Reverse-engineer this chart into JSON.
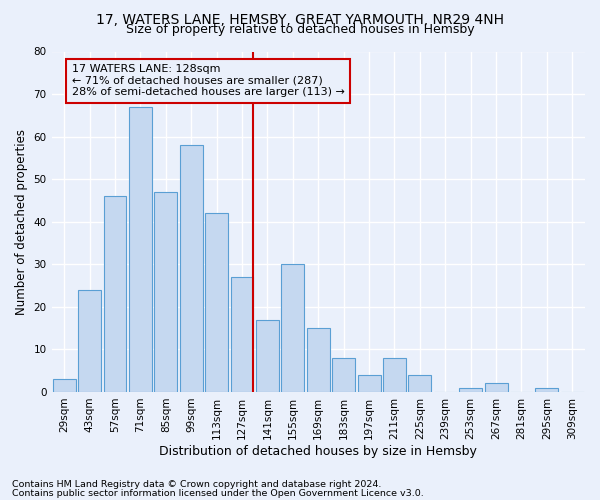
{
  "title1": "17, WATERS LANE, HEMSBY, GREAT YARMOUTH, NR29 4NH",
  "title2": "Size of property relative to detached houses in Hemsby",
  "xlabel": "Distribution of detached houses by size in Hemsby",
  "ylabel": "Number of detached properties",
  "footnote1": "Contains HM Land Registry data © Crown copyright and database right 2024.",
  "footnote2": "Contains public sector information licensed under the Open Government Licence v3.0.",
  "bar_labels": [
    "29sqm",
    "43sqm",
    "57sqm",
    "71sqm",
    "85sqm",
    "99sqm",
    "113sqm",
    "127sqm",
    "141sqm",
    "155sqm",
    "169sqm",
    "183sqm",
    "197sqm",
    "211sqm",
    "225sqm",
    "239sqm",
    "253sqm",
    "267sqm",
    "281sqm",
    "295sqm",
    "309sqm"
  ],
  "bar_values": [
    3,
    24,
    46,
    67,
    47,
    58,
    42,
    27,
    17,
    30,
    15,
    8,
    4,
    8,
    4,
    0,
    1,
    2,
    0,
    1,
    0
  ],
  "bar_color": "#c5d8f0",
  "bar_edgecolor": "#5a9fd4",
  "vline_index": 7,
  "vline_color": "#cc0000",
  "annotation_line1": "17 WATERS LANE: 128sqm",
  "annotation_line2": "← 71% of detached houses are smaller (287)",
  "annotation_line3": "28% of semi-detached houses are larger (113) →",
  "annotation_box_edgecolor": "#cc0000",
  "ylim": [
    0,
    80
  ],
  "yticks": [
    0,
    10,
    20,
    30,
    40,
    50,
    60,
    70,
    80
  ],
  "background_color": "#eaf0fb",
  "grid_color": "#ffffff",
  "title1_fontsize": 10,
  "title2_fontsize": 9,
  "xlabel_fontsize": 9,
  "ylabel_fontsize": 8.5,
  "tick_fontsize": 7.5,
  "annotation_fontsize": 8,
  "footnote_fontsize": 6.8
}
